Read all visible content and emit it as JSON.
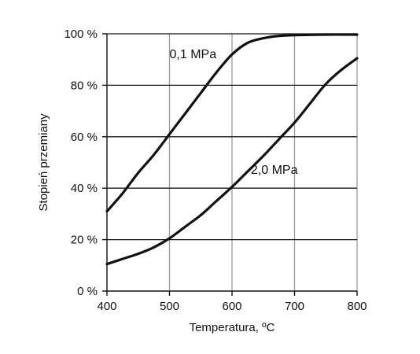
{
  "chart_data": {
    "type": "line",
    "title": "",
    "xlabel": "Temperatura, ºC",
    "ylabel": "Stopień przemiany",
    "xlim": [
      400,
      800
    ],
    "ylim": [
      0,
      100
    ],
    "x_ticks": [
      400,
      500,
      600,
      700,
      800
    ],
    "x_tick_labels": [
      "400",
      "500",
      "600",
      "700",
      "800"
    ],
    "y_ticks": [
      0,
      20,
      40,
      60,
      80,
      100
    ],
    "y_tick_labels": [
      "0 %",
      "20 %",
      "40 %",
      "60 %",
      "80 %",
      "100 %"
    ],
    "grid": true,
    "legend": "none",
    "series": [
      {
        "name": "0,1 MPa",
        "color": "#111111",
        "x": [
          400,
          425,
          450,
          475,
          500,
          525,
          550,
          575,
          600,
          625,
          650,
          675,
          700,
          750,
          800
        ],
        "y": [
          31,
          38,
          46,
          53,
          61,
          69,
          77,
          85,
          92,
          96.5,
          98.3,
          99.2,
          99.5,
          99.7,
          99.7
        ]
      },
      {
        "name": "2,0 MPa",
        "color": "#111111",
        "x": [
          400,
          425,
          450,
          475,
          500,
          525,
          550,
          575,
          600,
          625,
          650,
          675,
          700,
          725,
          750,
          775,
          800
        ],
        "y": [
          10.5,
          12.5,
          14.5,
          17,
          20.5,
          25,
          29.5,
          35,
          40.5,
          46.5,
          52.5,
          59,
          65.5,
          73,
          80.5,
          86,
          90.5
        ]
      }
    ],
    "annotations": [
      {
        "series_index": 0,
        "text": "0,1 MPa",
        "x": 575,
        "y": 90.5
      },
      {
        "series_index": 1,
        "text": "2,0 MPa",
        "x": 705,
        "y": 45.5
      }
    ]
  }
}
